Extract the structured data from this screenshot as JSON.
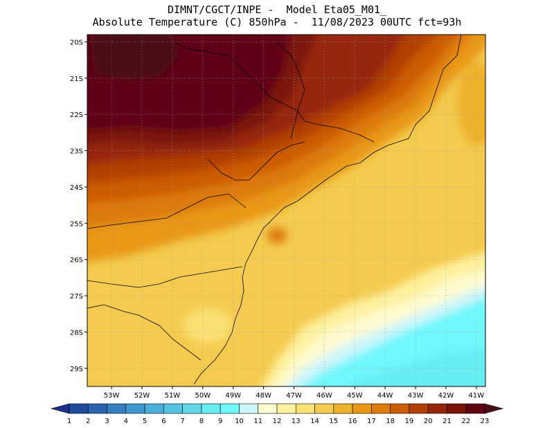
{
  "header": {
    "line1": "DIMNT/CGCT/INPE -  Model Eta05_M01_",
    "line2": "Absolute Temperature (C) 850hPa -  11/08/2023 00UTC fct=93h"
  },
  "map": {
    "lon_range": [
      -53.8,
      -40.7
    ],
    "lat_range": [
      -29.5,
      -19.8
    ],
    "lat_ticks": [
      "20S",
      "21S",
      "22S",
      "23S",
      "24S",
      "25S",
      "26S",
      "27S",
      "28S",
      "29S"
    ],
    "lon_ticks": [
      "53W",
      "52W",
      "51W",
      "50W",
      "49W",
      "48W",
      "47W",
      "46W",
      "45W",
      "44W",
      "43W",
      "42W",
      "41W"
    ],
    "gridlines": "dotted",
    "field": "850hPa temperature (C)"
  },
  "colorbar": {
    "labels": [
      "1",
      "2",
      "3",
      "4",
      "5",
      "6",
      "7",
      "8",
      "9",
      "10",
      "11",
      "12",
      "13",
      "14",
      "15",
      "16",
      "17",
      "18",
      "19",
      "20",
      "21",
      "22",
      "23"
    ],
    "colors": [
      "#1a2f8a",
      "#1f4a9a",
      "#2a64ae",
      "#357fc0",
      "#3f97cd",
      "#4aaed8",
      "#55c4e0",
      "#5fd8e8",
      "#66eef2",
      "#70f8fc",
      "#cdf6fa",
      "#fffbd0",
      "#fff1a0",
      "#fbe074",
      "#f4cb4f",
      "#eeb12c",
      "#e99815",
      "#dd7a0c",
      "#cc5c06",
      "#b23f05",
      "#962607",
      "#7a1408",
      "#600413",
      "#4a0c16"
    ]
  }
}
